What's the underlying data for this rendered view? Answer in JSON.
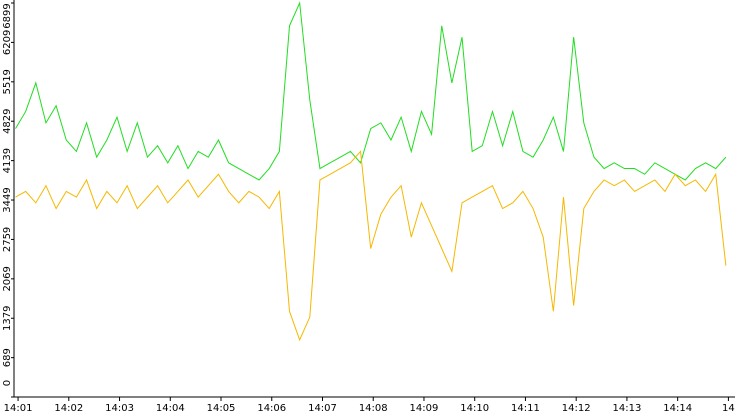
{
  "chart_data": {
    "type": "line",
    "x": [
      0.95,
      1.15,
      1.35,
      1.55,
      1.75,
      1.95,
      2.15,
      2.35,
      2.55,
      2.75,
      2.95,
      3.15,
      3.35,
      3.55,
      3.75,
      3.95,
      4.15,
      4.35,
      4.55,
      4.75,
      4.95,
      5.15,
      5.35,
      5.55,
      5.75,
      5.95,
      6.15,
      6.35,
      6.55,
      6.75,
      6.95,
      7.15,
      7.35,
      7.55,
      7.75,
      7.95,
      8.15,
      8.35,
      8.55,
      8.75,
      8.95,
      9.15,
      9.35,
      9.55,
      9.75,
      9.95,
      10.15,
      10.35,
      10.55,
      10.75,
      10.95,
      11.15,
      11.35,
      11.55,
      11.75,
      11.95,
      12.15,
      12.35,
      12.55,
      12.75,
      12.95,
      13.15,
      13.35,
      13.55,
      13.75,
      13.95,
      14.15,
      14.35,
      14.55,
      14.75,
      14.95
    ],
    "series": [
      {
        "color": "#22dd22",
        "values": [
          4700,
          5000,
          5500,
          4800,
          5100,
          4500,
          4300,
          4800,
          4200,
          4500,
          4900,
          4300,
          4800,
          4200,
          4400,
          4100,
          4400,
          4000,
          4300,
          4200,
          4500,
          4100,
          4000,
          3900,
          3800,
          4000,
          4300,
          6500,
          6899,
          5200,
          4000,
          4100,
          4200,
          4300,
          4100,
          4700,
          4800,
          4500,
          4900,
          4300,
          5000,
          4600,
          6500,
          5500,
          6300,
          4300,
          4400,
          5000,
          4400,
          5000,
          4300,
          4200,
          4500,
          4900,
          4300,
          6300,
          4800,
          4200,
          4000,
          4100,
          4000,
          4000,
          3900,
          4100,
          4000,
          3900,
          3800,
          4000,
          4100,
          4000,
          4200
        ]
      },
      {
        "color": "#f5b800",
        "values": [
          3500,
          3600,
          3400,
          3700,
          3300,
          3600,
          3500,
          3800,
          3300,
          3600,
          3400,
          3700,
          3300,
          3500,
          3700,
          3400,
          3600,
          3800,
          3500,
          3700,
          3900,
          3600,
          3400,
          3600,
          3500,
          3300,
          3600,
          1500,
          1000,
          1400,
          3800,
          3900,
          4000,
          4100,
          4300,
          2600,
          3200,
          3500,
          3700,
          2800,
          3400,
          3000,
          2600,
          2200,
          3400,
          3500,
          3600,
          3700,
          3300,
          3400,
          3600,
          3300,
          2800,
          1500,
          3500,
          1600,
          3300,
          3600,
          3800,
          3700,
          3800,
          3600,
          3700,
          3800,
          3600,
          3900,
          3700,
          3800,
          3600,
          3900,
          2300
        ]
      }
    ],
    "xlim": [
      0.92,
      15.13
    ],
    "xticks": [
      {
        "value": 1,
        "label": "14:01"
      },
      {
        "value": 2,
        "label": "14:02"
      },
      {
        "value": 3,
        "label": "14:03"
      },
      {
        "value": 4,
        "label": "14:04"
      },
      {
        "value": 5,
        "label": "14:05"
      },
      {
        "value": 6,
        "label": "14:06"
      },
      {
        "value": 7,
        "label": "14:07"
      },
      {
        "value": 8,
        "label": "14:08"
      },
      {
        "value": 9,
        "label": "14:09"
      },
      {
        "value": 10,
        "label": "14:10"
      },
      {
        "value": 11,
        "label": "14:11"
      },
      {
        "value": 12,
        "label": "14:12"
      },
      {
        "value": 13,
        "label": "14:13"
      },
      {
        "value": 14,
        "label": "14:14"
      },
      {
        "value": 15,
        "label": "14"
      }
    ],
    "ylim": [
      0,
      6899
    ],
    "yticks": [
      0,
      689,
      1379,
      2069,
      2759,
      3449,
      4139,
      4829,
      5519,
      6209,
      6899
    ]
  }
}
